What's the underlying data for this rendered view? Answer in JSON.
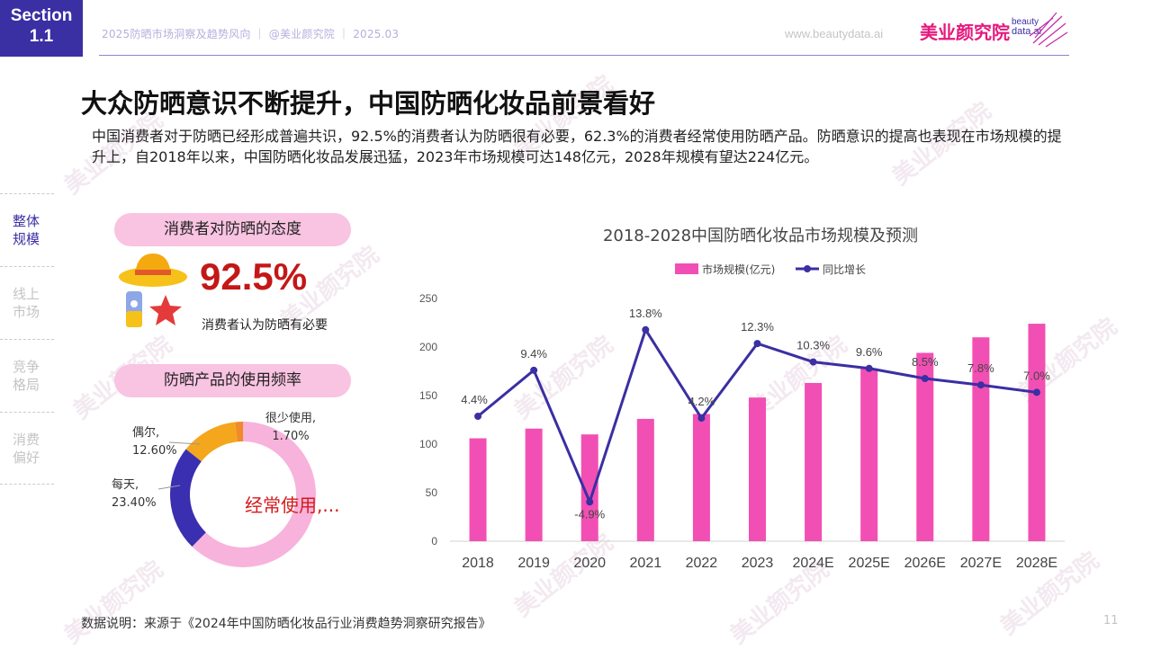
{
  "section": {
    "line1": "Section",
    "line2": "1.1"
  },
  "header": {
    "meta": "2025防晒市场洞察及趋势风向 ｜ @美业颜究院 ｜ 2025.03",
    "url": "www.beautydata.ai",
    "logo_cn": "美业颜究院",
    "logo_en1": "beauty",
    "logo_en2": "data.ai"
  },
  "title": "大众防晒意识不断提升，中国防晒化妆品前景看好",
  "lead": "中国消费者对于防晒已经形成普遍共识，92.5%的消费者认为防晒很有必要，62.3%的消费者经常使用防晒产品。防晒意识的提高也表现在市场规模的提升上，自2018年以来，中国防晒化妆品发展迅猛，2023年市场规模可达148亿元，2028年规模有望达224亿元。",
  "nav": [
    {
      "label": "整体\n规模",
      "active": true
    },
    {
      "label": "线上\n市场",
      "active": false
    },
    {
      "label": "竞争\n格局",
      "active": false
    },
    {
      "label": "消费\n偏好",
      "active": false
    }
  ],
  "attitude": {
    "pill": "消费者对防晒的态度",
    "value": "92.5%",
    "caption": "消费者认为防晒有必要"
  },
  "frequency": {
    "pill": "防晒产品的使用频率",
    "center_label": "经常使用,...",
    "slices": [
      {
        "name": "经常使用",
        "value": 62.3,
        "color": "#f7b3dc",
        "label1": "",
        "label2": ""
      },
      {
        "name": "每天",
        "value": 23.4,
        "color": "#3a2fb0",
        "label1": "每天,",
        "label2": "23.40%"
      },
      {
        "name": "偶尔",
        "value": 12.6,
        "color": "#f4a61c",
        "label1": "偶尔,",
        "label2": "12.60%"
      },
      {
        "name": "很少使用",
        "value": 1.7,
        "color": "#f08a2a",
        "label1": "很少使用,",
        "label2": "1.70%"
      }
    ]
  },
  "chart_data": {
    "type": "bar",
    "title": "2018-2028中国防晒化妆品市场规模及预测",
    "categories": [
      "2018",
      "2019",
      "2020",
      "2021",
      "2022",
      "2023",
      "2024E",
      "2025E",
      "2026E",
      "2027E",
      "2028E"
    ],
    "series": [
      {
        "name": "市场规模(亿元)",
        "type": "bar",
        "color": "#f24fb4",
        "values": [
          106,
          116,
          110,
          126,
          131,
          148,
          163,
          178,
          194,
          210,
          224
        ]
      },
      {
        "name": "同比增长",
        "type": "line",
        "color": "#3a2fa3",
        "values": [
          4.4,
          9.4,
          -4.9,
          13.8,
          4.2,
          12.3,
          10.3,
          9.6,
          8.5,
          7.8,
          7.0
        ],
        "labels": [
          "4.4%",
          "9.4%",
          "-4.9%",
          "13.8%",
          "4.2%",
          "12.3%",
          "10.3%",
          "9.6%",
          "8.5%",
          "7.8%",
          "7.0%"
        ]
      }
    ],
    "ylim": [
      0,
      250
    ],
    "yticks": [
      0,
      50,
      100,
      150,
      200,
      250
    ],
    "legend": "top-center",
    "grid": false
  },
  "footer": {
    "source": "数据说明：来源于《2024年中国防晒化妆品行业消费趋势洞察研究报告》",
    "page": "11"
  },
  "watermark": "美业颜究院"
}
